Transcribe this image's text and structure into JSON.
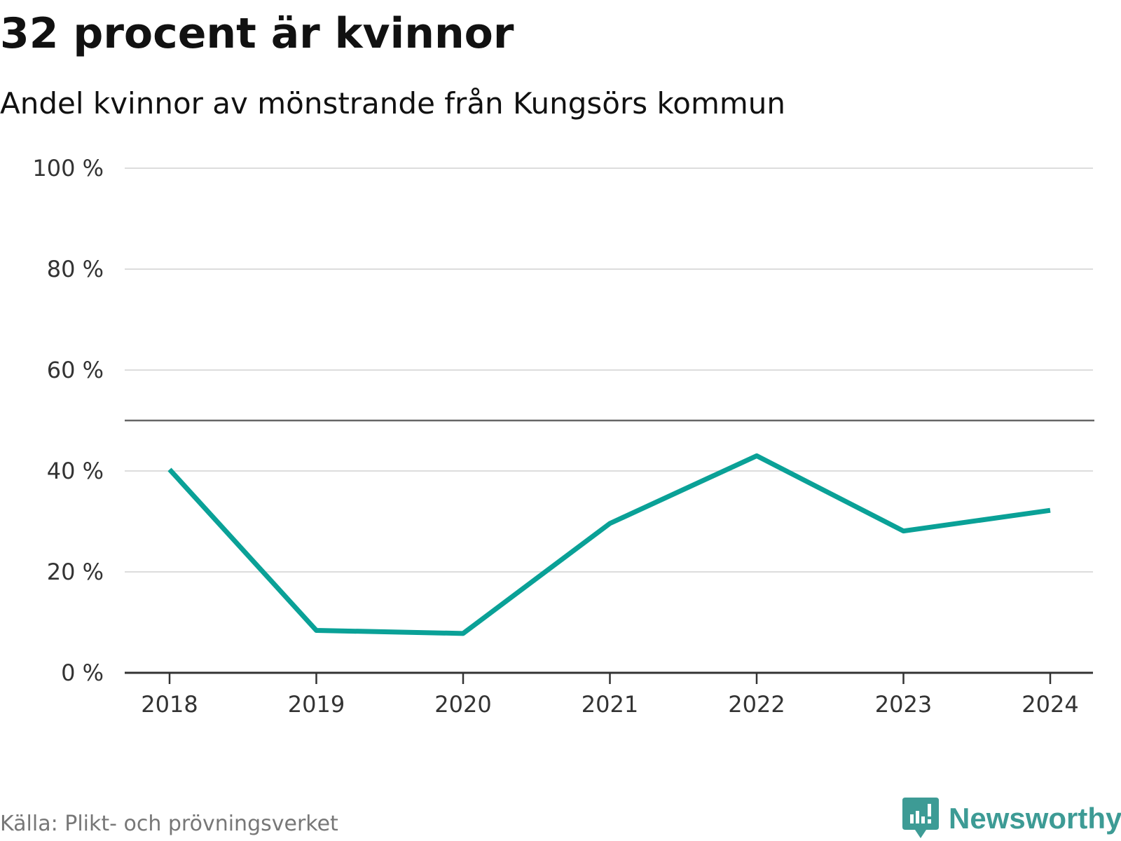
{
  "title": "32 procent är kvinnor",
  "subtitle": "Andel kvinnor av mönstrande från Kungsörs kommun",
  "source": "Källa: Plikt- och prövningsverket",
  "brand": {
    "name": "Newsworthy",
    "icon": "newsworthy-logo-icon",
    "color": "#3d9b95"
  },
  "colors": {
    "line": "#0aa197",
    "grid": "#dddddd",
    "axis": "#333333",
    "reference": "#666666"
  },
  "chart_data": {
    "type": "line",
    "title": "32 procent är kvinnor",
    "subtitle": "Andel kvinnor av mönstrande från Kungsörs kommun",
    "xlabel": "",
    "ylabel": "",
    "x": [
      "2018",
      "2019",
      "2020",
      "2021",
      "2022",
      "2023",
      "2024"
    ],
    "series": [
      {
        "name": "Andel kvinnor",
        "values": [
          40.3,
          8.4,
          7.8,
          29.6,
          43.0,
          28.1,
          32.2
        ]
      }
    ],
    "ylim": [
      0,
      100
    ],
    "yticks": [
      0,
      20,
      40,
      60,
      80,
      100
    ],
    "ytick_labels": [
      "0 %",
      "20 %",
      "40 %",
      "60 %",
      "80 %",
      "100 %"
    ],
    "reference_line": 50,
    "grid": true,
    "legend": "none"
  }
}
